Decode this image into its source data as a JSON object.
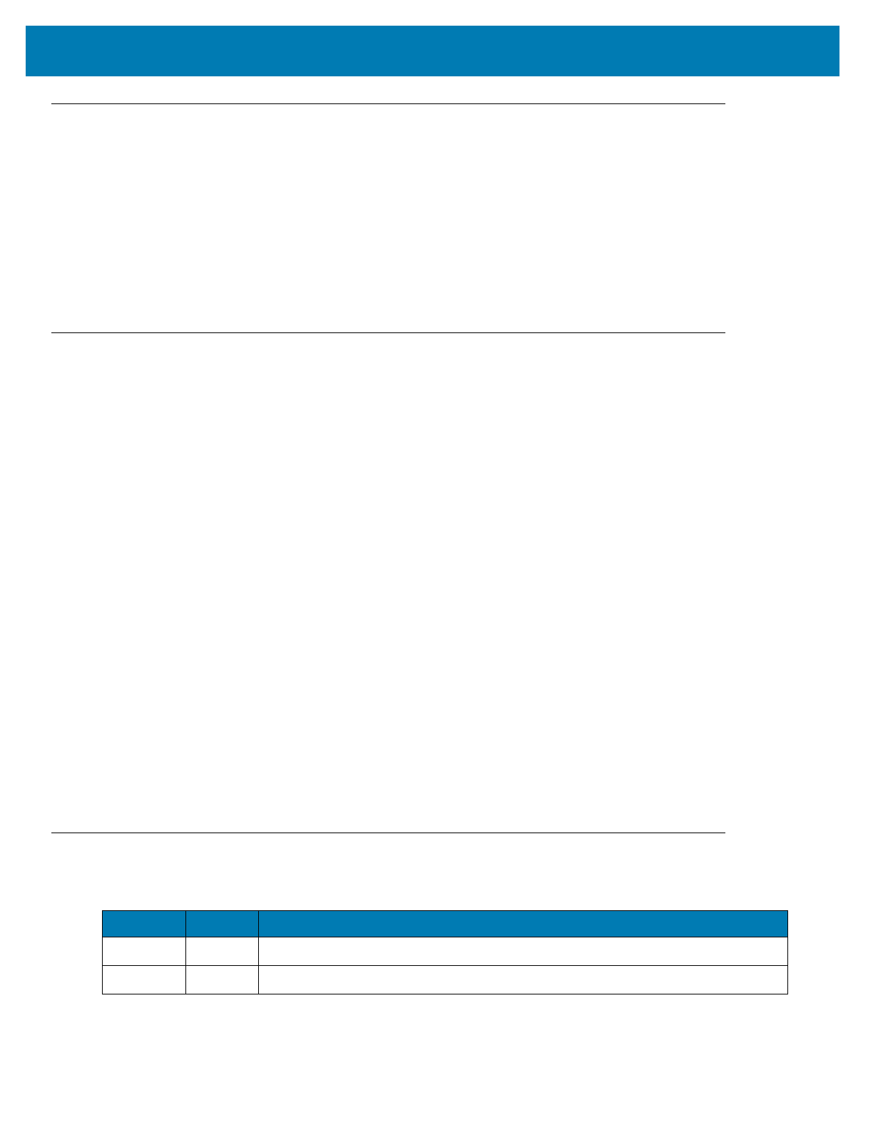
{
  "colors": {
    "accent": "#007bb3",
    "rule": "#000000"
  },
  "header": {
    "title": ""
  },
  "table": {
    "columns": [
      "",
      "",
      ""
    ],
    "rows": [
      [
        "",
        "",
        ""
      ],
      [
        "",
        "",
        ""
      ]
    ]
  }
}
